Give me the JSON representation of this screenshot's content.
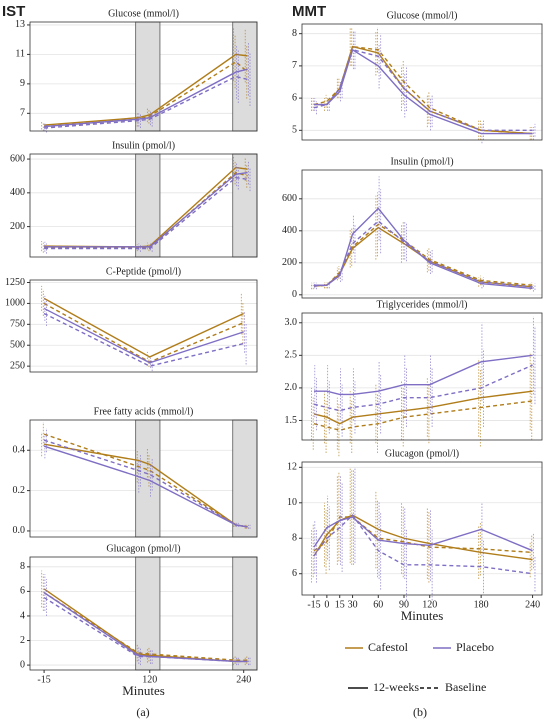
{
  "figures": [
    {
      "label": "IST",
      "caption": "(a)"
    },
    {
      "label": "MMT",
      "caption": "(b)"
    }
  ],
  "legend": {
    "colors": [
      {
        "name": "Cafestol",
        "color": "#b07d1a"
      },
      {
        "name": "Placebo",
        "color": "#7f6ec4"
      }
    ],
    "linetypes": [
      {
        "name": "12-weeks",
        "dash": false
      },
      {
        "name": "Baseline",
        "dash": true
      }
    ]
  },
  "chart_data": [
    {
      "type": "line",
      "title": "Glucose (mmol/l)",
      "x": [
        -15,
        105,
        120,
        230,
        245
      ],
      "xlim": [
        -33,
        257
      ],
      "ylim": [
        5.8,
        13.2
      ],
      "yticks": [
        7,
        9,
        11,
        13
      ],
      "shaded": [
        [
          102,
          133
        ],
        [
          226,
          257
        ]
      ],
      "series": [
        {
          "color": "#b07d1a",
          "dash": false,
          "values": [
            6.2,
            6.7,
            6.9,
            11.0,
            10.9
          ],
          "errors": [
            0.3,
            0.5,
            0.5,
            1.8,
            1.8
          ]
        },
        {
          "color": "#b07d1a",
          "dash": true,
          "values": [
            6.1,
            6.6,
            6.8,
            10.5,
            9.8
          ],
          "errors": [
            0.3,
            0.5,
            0.5,
            1.8,
            1.8
          ]
        },
        {
          "color": "#7f6ec4",
          "dash": false,
          "values": [
            6.1,
            6.6,
            6.7,
            9.8,
            10.0
          ],
          "errors": [
            0.3,
            0.5,
            0.5,
            1.8,
            1.8
          ]
        },
        {
          "color": "#7f6ec4",
          "dash": true,
          "values": [
            6.0,
            6.5,
            6.6,
            9.5,
            9.3
          ],
          "errors": [
            0.3,
            0.5,
            0.5,
            1.8,
            1.8
          ]
        }
      ]
    },
    {
      "type": "line",
      "title": "Insulin (pmol/l)",
      "x": [
        -15,
        105,
        120,
        230,
        245
      ],
      "xlim": [
        -33,
        257
      ],
      "ylim": [
        20,
        630
      ],
      "yticks": [
        200,
        400,
        600
      ],
      "shaded": [
        [
          102,
          133
        ],
        [
          226,
          257
        ]
      ],
      "series": [
        {
          "color": "#b07d1a",
          "dash": false,
          "values": [
            85,
            80,
            85,
            550,
            540
          ],
          "errors": [
            30,
            20,
            20,
            70,
            70
          ]
        },
        {
          "color": "#b07d1a",
          "dash": true,
          "values": [
            75,
            75,
            75,
            520,
            500
          ],
          "errors": [
            30,
            20,
            20,
            70,
            70
          ]
        },
        {
          "color": "#7f6ec4",
          "dash": false,
          "values": [
            80,
            80,
            80,
            510,
            520
          ],
          "errors": [
            30,
            20,
            20,
            70,
            70
          ]
        },
        {
          "color": "#7f6ec4",
          "dash": true,
          "values": [
            70,
            70,
            70,
            490,
            480
          ],
          "errors": [
            30,
            20,
            20,
            70,
            70
          ]
        }
      ]
    },
    {
      "type": "line",
      "title": "C-Peptide (pmol/l)",
      "x": [
        -15,
        120,
        240
      ],
      "xlim": [
        -33,
        257
      ],
      "ylim": [
        180,
        1280
      ],
      "yticks": [
        250,
        500,
        750,
        1000,
        1250
      ],
      "series": [
        {
          "color": "#b07d1a",
          "dash": false,
          "values": [
            1060,
            360,
            880
          ],
          "errors": [
            150,
            60,
            250
          ]
        },
        {
          "color": "#b07d1a",
          "dash": true,
          "values": [
            1000,
            300,
            770
          ],
          "errors": [
            150,
            60,
            250
          ]
        },
        {
          "color": "#7f6ec4",
          "dash": false,
          "values": [
            940,
            290,
            660
          ],
          "errors": [
            150,
            60,
            250
          ]
        },
        {
          "color": "#7f6ec4",
          "dash": true,
          "values": [
            880,
            250,
            520
          ],
          "errors": [
            150,
            60,
            250
          ]
        }
      ]
    },
    {
      "type": "line",
      "title": "Free fatty acids (mmol/l)",
      "x": [
        -15,
        105,
        120,
        230,
        245
      ],
      "xlim": [
        -33,
        257
      ],
      "ylim": [
        -0.03,
        0.55
      ],
      "yticks": [
        {
          "value": 0,
          "label": "0.0"
        },
        0.2,
        0.4
      ],
      "shaded": [
        [
          102,
          133
        ],
        [
          226,
          257
        ]
      ],
      "series": [
        {
          "color": "#b07d1a",
          "dash": false,
          "values": [
            0.43,
            0.35,
            0.33,
            0.03,
            0.02
          ],
          "errors": [
            0.06,
            0.08,
            0.08,
            0.01,
            0.01
          ]
        },
        {
          "color": "#b07d1a",
          "dash": true,
          "values": [
            0.48,
            0.32,
            0.3,
            0.03,
            0.02
          ],
          "errors": [
            0.06,
            0.08,
            0.08,
            0.01,
            0.01
          ]
        },
        {
          "color": "#7f6ec4",
          "dash": false,
          "values": [
            0.42,
            0.27,
            0.25,
            0.03,
            0.02
          ],
          "errors": [
            0.06,
            0.08,
            0.08,
            0.01,
            0.01
          ]
        },
        {
          "color": "#7f6ec4",
          "dash": true,
          "values": [
            0.45,
            0.3,
            0.28,
            0.03,
            0.02
          ],
          "errors": [
            0.06,
            0.08,
            0.08,
            0.01,
            0.01
          ]
        }
      ]
    },
    {
      "type": "line",
      "title": "Glucagon (pmol/l)",
      "x": [
        -15,
        105,
        120,
        230,
        245
      ],
      "xlim": [
        -33,
        257
      ],
      "ylim": [
        -0.4,
        8.8
      ],
      "yticks": [
        0,
        2,
        4,
        6,
        8
      ],
      "shaded": [
        [
          102,
          133
        ],
        [
          226,
          257
        ]
      ],
      "xticks": [
        -15,
        120,
        240
      ],
      "xlabel": "Minutes",
      "series": [
        {
          "color": "#b07d1a",
          "dash": false,
          "values": [
            6.2,
            0.9,
            0.8,
            0.3,
            0.3
          ],
          "errors": [
            1.5,
            0.7,
            0.6,
            0.3,
            0.3
          ]
        },
        {
          "color": "#b07d1a",
          "dash": true,
          "values": [
            5.9,
            1.0,
            0.9,
            0.4,
            0.4
          ],
          "errors": [
            1.5,
            0.7,
            0.6,
            0.3,
            0.3
          ]
        },
        {
          "color": "#7f6ec4",
          "dash": false,
          "values": [
            5.9,
            0.8,
            0.7,
            0.3,
            0.3
          ],
          "errors": [
            1.5,
            0.7,
            0.6,
            0.3,
            0.3
          ]
        },
        {
          "color": "#7f6ec4",
          "dash": true,
          "values": [
            5.5,
            0.7,
            0.7,
            0.3,
            0.3
          ],
          "errors": [
            1.5,
            0.7,
            0.6,
            0.3,
            0.3
          ]
        }
      ]
    },
    {
      "type": "line",
      "title": "Glucose (mmol/l)",
      "x": [
        -15,
        0,
        15,
        30,
        60,
        90,
        120,
        180,
        240
      ],
      "xlim": [
        -29,
        251
      ],
      "ylim": [
        4.7,
        8.3
      ],
      "yticks": [
        5,
        6,
        7,
        8
      ],
      "series": [
        {
          "color": "#b07d1a",
          "dash": false,
          "values": [
            5.8,
            5.8,
            6.3,
            7.6,
            7.4,
            6.3,
            5.6,
            5.0,
            4.9
          ],
          "errors": [
            0.2,
            0.2,
            0.3,
            0.6,
            0.7,
            0.7,
            0.5,
            0.3,
            0.2
          ]
        },
        {
          "color": "#b07d1a",
          "dash": true,
          "values": [
            5.8,
            5.9,
            6.3,
            7.6,
            7.5,
            6.5,
            5.7,
            5.0,
            4.9
          ],
          "errors": [
            0.2,
            0.2,
            0.3,
            0.6,
            0.7,
            0.7,
            0.5,
            0.3,
            0.2
          ]
        },
        {
          "color": "#7f6ec4",
          "dash": false,
          "values": [
            5.8,
            5.8,
            6.2,
            7.5,
            7.0,
            6.1,
            5.5,
            4.9,
            4.9
          ],
          "errors": [
            0.2,
            0.2,
            0.3,
            0.6,
            0.7,
            0.7,
            0.5,
            0.3,
            0.2
          ]
        },
        {
          "color": "#7f6ec4",
          "dash": true,
          "values": [
            5.7,
            5.8,
            6.3,
            7.5,
            7.3,
            6.3,
            5.6,
            5.0,
            5.0
          ],
          "errors": [
            0.2,
            0.2,
            0.3,
            0.6,
            0.7,
            0.7,
            0.5,
            0.3,
            0.2
          ]
        }
      ]
    },
    {
      "type": "line",
      "title": "Insulin (pmol/l)",
      "x": [
        -15,
        0,
        15,
        30,
        60,
        90,
        120,
        180,
        240
      ],
      "xlim": [
        -29,
        251
      ],
      "ylim": [
        -20,
        780
      ],
      "yticks": [
        0,
        200,
        400,
        600
      ],
      "series": [
        {
          "color": "#b07d1a",
          "dash": false,
          "values": [
            55,
            60,
            130,
            290,
            420,
            320,
            210,
            80,
            50
          ],
          "errors": [
            20,
            20,
            40,
            120,
            200,
            120,
            70,
            30,
            20
          ]
        },
        {
          "color": "#b07d1a",
          "dash": true,
          "values": [
            55,
            60,
            140,
            300,
            440,
            340,
            220,
            90,
            60
          ],
          "errors": [
            20,
            20,
            40,
            120,
            200,
            120,
            70,
            30,
            20
          ]
        },
        {
          "color": "#7f6ec4",
          "dash": false,
          "values": [
            60,
            60,
            120,
            380,
            540,
            340,
            200,
            70,
            40
          ],
          "errors": [
            20,
            20,
            40,
            120,
            200,
            120,
            70,
            30,
            20
          ]
        },
        {
          "color": "#7f6ec4",
          "dash": true,
          "values": [
            55,
            60,
            130,
            320,
            460,
            330,
            210,
            80,
            50
          ],
          "errors": [
            20,
            20,
            40,
            120,
            200,
            120,
            70,
            30,
            20
          ]
        }
      ]
    },
    {
      "type": "line",
      "title": "Triglycerides (mmol/l)",
      "x": [
        -15,
        0,
        15,
        30,
        60,
        90,
        120,
        180,
        240
      ],
      "xlim": [
        -29,
        251
      ],
      "ylim": [
        1.2,
        3.15
      ],
      "yticks": [
        1.5,
        {
          "value": 2,
          "label": "2.0"
        },
        2.5,
        {
          "value": 3,
          "label": "3.0"
        }
      ],
      "series": [
        {
          "color": "#b07d1a",
          "dash": false,
          "values": [
            1.6,
            1.55,
            1.45,
            1.55,
            1.6,
            1.65,
            1.7,
            1.85,
            1.95
          ],
          "errors": [
            0.4,
            0.4,
            0.4,
            0.4,
            0.45,
            0.45,
            0.45,
            0.6,
            0.6
          ]
        },
        {
          "color": "#b07d1a",
          "dash": true,
          "values": [
            1.45,
            1.4,
            1.35,
            1.4,
            1.45,
            1.55,
            1.6,
            1.7,
            1.8
          ],
          "errors": [
            0.4,
            0.4,
            0.4,
            0.4,
            0.45,
            0.45,
            0.45,
            0.6,
            0.6
          ]
        },
        {
          "color": "#7f6ec4",
          "dash": false,
          "values": [
            1.95,
            1.95,
            1.9,
            1.9,
            1.95,
            2.05,
            2.05,
            2.4,
            2.5
          ],
          "errors": [
            0.4,
            0.4,
            0.4,
            0.4,
            0.45,
            0.45,
            0.45,
            0.6,
            0.6
          ]
        },
        {
          "color": "#7f6ec4",
          "dash": true,
          "values": [
            1.75,
            1.7,
            1.65,
            1.7,
            1.75,
            1.85,
            1.85,
            2.0,
            2.35
          ],
          "errors": [
            0.4,
            0.4,
            0.4,
            0.4,
            0.45,
            0.45,
            0.45,
            0.6,
            0.6
          ]
        }
      ]
    },
    {
      "type": "line",
      "title": "Glucagon (pmol/l)",
      "x": [
        -15,
        0,
        15,
        30,
        60,
        90,
        120,
        180,
        240
      ],
      "xlim": [
        -29,
        251
      ],
      "ylim": [
        4.8,
        12.3
      ],
      "yticks": [
        6,
        8,
        10,
        12
      ],
      "xticks": [
        -15,
        0,
        15,
        30,
        60,
        90,
        120,
        180,
        240
      ],
      "xlabel": "Minutes",
      "series": [
        {
          "color": "#b07d1a",
          "dash": false,
          "values": [
            7.0,
            8.2,
            9.0,
            9.3,
            8.5,
            8.0,
            7.7,
            7.2,
            6.8
          ],
          "errors": [
            1.5,
            1.8,
            2.5,
            2.7,
            2.2,
            2.0,
            2.0,
            1.5,
            1.0
          ]
        },
        {
          "color": "#b07d1a",
          "dash": true,
          "values": [
            7.3,
            7.8,
            9.2,
            9.2,
            8.0,
            7.8,
            7.5,
            7.4,
            7.2
          ],
          "errors": [
            1.5,
            1.8,
            2.5,
            2.7,
            2.2,
            2.0,
            2.0,
            1.5,
            1.0
          ]
        },
        {
          "color": "#7f6ec4",
          "dash": false,
          "values": [
            7.5,
            8.6,
            9.0,
            9.2,
            7.9,
            7.7,
            7.6,
            8.5,
            7.3
          ],
          "errors": [
            1.5,
            1.8,
            2.5,
            2.7,
            2.2,
            2.0,
            2.0,
            1.5,
            1.0
          ]
        },
        {
          "color": "#7f6ec4",
          "dash": true,
          "values": [
            7.0,
            8.0,
            8.6,
            9.3,
            7.3,
            6.5,
            6.5,
            6.4,
            6.0
          ],
          "errors": [
            1.5,
            1.8,
            2.5,
            2.7,
            2.2,
            2.0,
            2.0,
            1.5,
            1.0
          ]
        }
      ]
    }
  ]
}
